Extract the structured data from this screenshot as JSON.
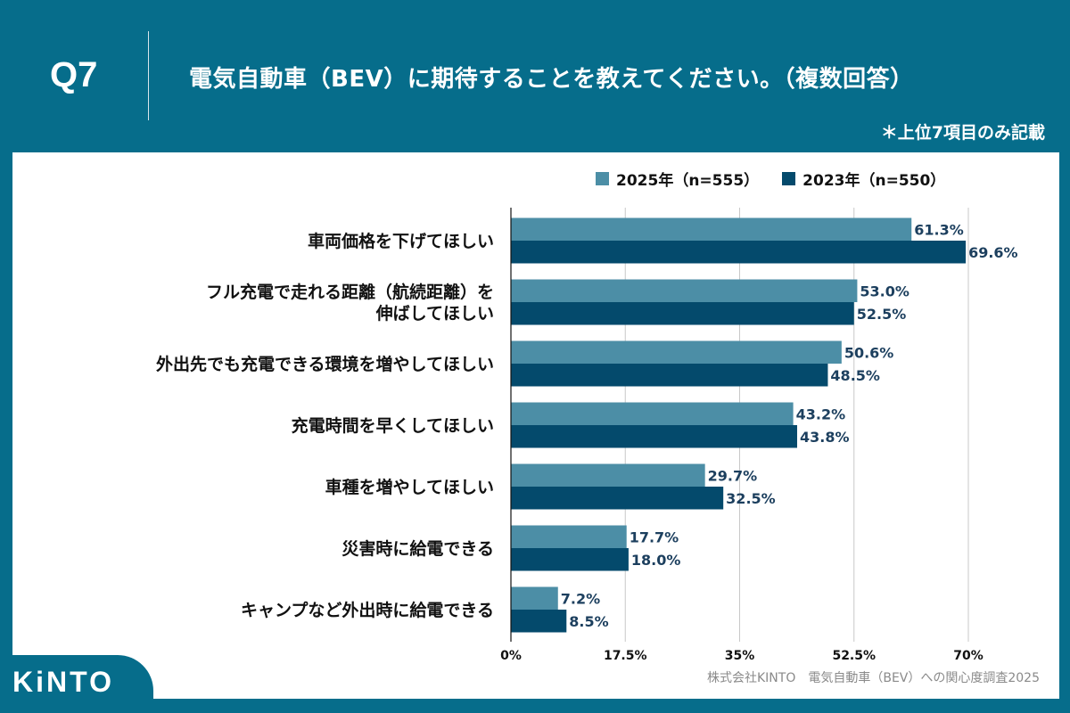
{
  "header": {
    "q_number": "Q7",
    "title": "電気自動車（BEV）に期待することを教えてください。（複数回答）",
    "note": "＊上位7項目のみ記載"
  },
  "logo": "KiNTO",
  "source": "株式会社KINTO　電気自動車（BEV）への関心度調査2025",
  "chart_data": {
    "type": "bar",
    "orientation": "horizontal",
    "categories": [
      [
        "車両価格を下げてほしい"
      ],
      [
        "フル充電で走れる距離（航続距離）を",
        "伸ばしてほしい"
      ],
      [
        "外出先でも充電できる環境を増やしてほしい"
      ],
      [
        "充電時間を早くしてほしい"
      ],
      [
        "車種を増やしてほしい"
      ],
      [
        "災害時に給電できる"
      ],
      [
        "キャンプなど外出時に給電できる"
      ]
    ],
    "series": [
      {
        "name": "2025年（n=555）",
        "color": "#4c8ea6",
        "values": [
          61.3,
          53.0,
          50.6,
          43.2,
          29.7,
          17.7,
          7.2
        ],
        "labels": [
          "61.3%",
          "53.0%",
          "50.6%",
          "43.2%",
          "29.7%",
          "17.7%",
          "7.2%"
        ]
      },
      {
        "name": "2023年（n=550）",
        "color": "#044a6c",
        "values": [
          69.6,
          52.5,
          48.5,
          43.8,
          32.5,
          18.0,
          8.5
        ],
        "labels": [
          "69.6%",
          "52.5%",
          "48.5%",
          "43.8%",
          "32.5%",
          "18.0%",
          "8.5%"
        ]
      }
    ],
    "xlim": [
      0,
      70
    ],
    "xticks": [
      0,
      17.5,
      35,
      52.5,
      70
    ],
    "xtick_labels": [
      "0%",
      "17.5%",
      "35%",
      "52.5%",
      "70%"
    ],
    "grid": true,
    "legend_position": "top-right",
    "label_color": "#1c3f5e"
  }
}
